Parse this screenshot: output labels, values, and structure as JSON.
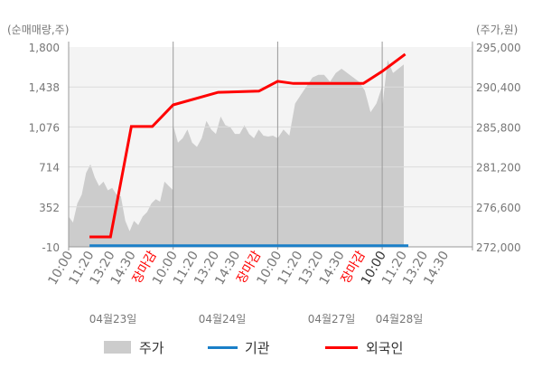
{
  "chart_data": {
    "type": "area+line",
    "left_axis_label": "(순매매량,주)",
    "right_axis_label": "(주가,원)",
    "left_ticks": [
      "1,800",
      "1,438",
      "1,076",
      "714",
      "352",
      "-10"
    ],
    "left_ylim": [
      -10,
      1800
    ],
    "right_ticks": [
      "295,000",
      "290,400",
      "285,800",
      "281,200",
      "276,600",
      "272,000"
    ],
    "right_ylim": [
      272000,
      295000
    ],
    "x_tick_labels": [
      "10:00",
      "11:20",
      "13:20",
      "14:30",
      "장마감",
      "10:00",
      "11:20",
      "13:20",
      "14:30",
      "장마감",
      "10:00",
      "11:20",
      "13:20",
      "14:30",
      "장마감",
      "10:00",
      "11:20",
      "13:20",
      "14:30"
    ],
    "close_label": "장마감",
    "dates": [
      "04월23일",
      "04월24일",
      "04월27일",
      "04월28일"
    ],
    "grid": true,
    "legend_position": "bottom",
    "colors": {
      "price": "#cccccc",
      "institution": "#1a7fc8",
      "foreign": "#ff0000",
      "plot_bg": "#f4f4f4",
      "close_label": "#ff0000"
    },
    "series": [
      {
        "name": "주가",
        "axis": "right",
        "days": [
          [
            275500,
            274800,
            277000,
            278000,
            280500,
            281500,
            280000,
            279000,
            279500,
            278500,
            278800,
            278000,
            277800,
            275000,
            273800,
            275000,
            274500,
            275500,
            276000,
            277000,
            277500,
            277200,
            279500,
            279000,
            278500
          ],
          [
            286000,
            284000,
            284500,
            285500,
            284000,
            283500,
            284500,
            286500,
            285500,
            285000,
            287000,
            286000,
            285800,
            285000,
            285000,
            286000,
            285000,
            284500,
            285500,
            284800,
            284700,
            284800,
            284500
          ],
          [
            284500,
            285500,
            284800,
            288500,
            289500,
            290500,
            291500,
            291800,
            291800,
            291000,
            292000,
            292500,
            292000,
            291500,
            291000,
            290000,
            287500,
            288500,
            290500
          ],
          [
            288000,
            293500,
            292000,
            292500,
            293000
          ]
        ]
      },
      {
        "name": "기관",
        "axis": "left",
        "points": [
          [
            0.2,
            0
          ],
          [
            3.25,
            0
          ]
        ]
      },
      {
        "name": "외국인",
        "axis": "left",
        "points": [
          [
            0.2,
            80
          ],
          [
            0.4,
            80
          ],
          [
            0.6,
            1080
          ],
          [
            0.8,
            1080
          ],
          [
            1.0,
            1276
          ],
          [
            1.43,
            1390
          ],
          [
            1.82,
            1400
          ],
          [
            2.0,
            1490
          ],
          [
            2.15,
            1470
          ],
          [
            2.82,
            1470
          ],
          [
            3.0,
            1580
          ],
          [
            3.22,
            1735
          ]
        ]
      }
    ]
  }
}
